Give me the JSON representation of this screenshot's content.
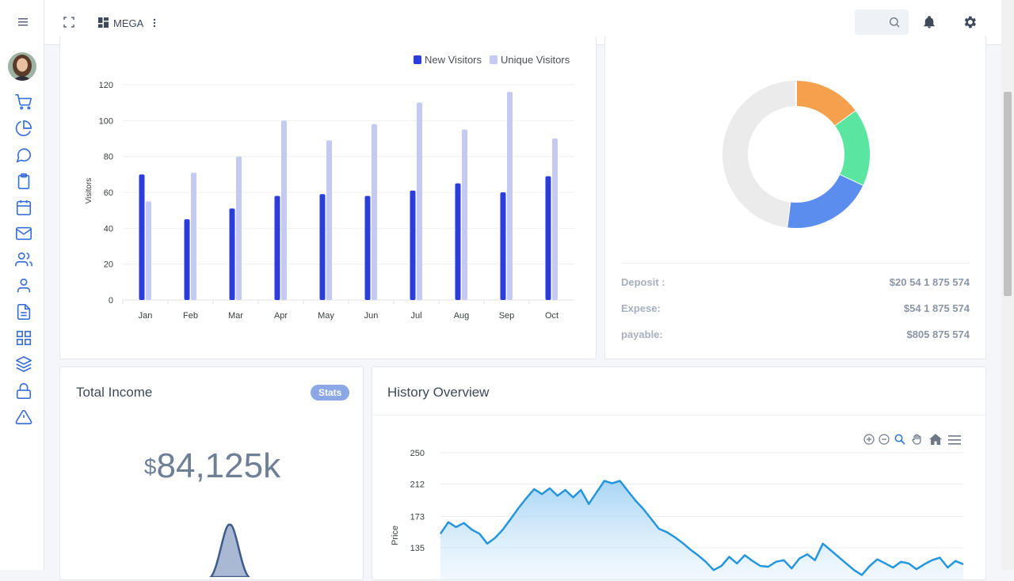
{
  "topbar": {
    "mega_label": "MEGA"
  },
  "visitors_chart": {
    "legend": [
      "New Visitors",
      "Unique Visitors"
    ],
    "colors": [
      "#2b3ed9",
      "#c4caf3"
    ]
  },
  "donut": {
    "segments": [
      {
        "color": "#f4a04d",
        "value": 15
      },
      {
        "color": "#5ae6a0",
        "value": 17
      },
      {
        "color": "#5b8def",
        "value": 20
      },
      {
        "color": "#ebebeb",
        "value": 48
      }
    ],
    "rows": [
      {
        "label": "Deposit :",
        "value": "$20 54 1 875 574"
      },
      {
        "label": "Expese:",
        "value": "$54 1 875 574"
      },
      {
        "label": "payable:",
        "value": "$805 875 574"
      }
    ]
  },
  "total_income": {
    "title": "Total Income",
    "badge": "Stats",
    "currency": "$",
    "amount": "84,125k"
  },
  "history": {
    "title": "History Overview",
    "y_axis_label": "Price",
    "y_ticks": [
      "250",
      "212",
      "173",
      "135"
    ]
  },
  "chart_data": [
    {
      "type": "bar",
      "categories": [
        "Jan",
        "Feb",
        "Mar",
        "Apr",
        "May",
        "Jun",
        "Jul",
        "Aug",
        "Sep",
        "Oct"
      ],
      "series": [
        {
          "name": "New Visitors",
          "values": [
            70,
            45,
            51,
            58,
            59,
            58,
            61,
            65,
            60,
            69
          ]
        },
        {
          "name": "Unique Visitors",
          "values": [
            55,
            71,
            80,
            100,
            89,
            98,
            110,
            95,
            116,
            90
          ]
        }
      ],
      "ylabel": "Visitors",
      "ylim": [
        0,
        120
      ],
      "y_ticks": [
        0,
        20,
        40,
        60,
        80,
        100,
        120
      ],
      "grid": true,
      "legend": "top-right"
    },
    {
      "type": "area",
      "ylabel": "Price",
      "ylim": [
        100,
        250
      ],
      "y_ticks": [
        135,
        173,
        212,
        250
      ],
      "values": [
        152,
        166,
        160,
        165,
        157,
        152,
        140,
        147,
        157,
        170,
        183,
        195,
        206,
        200,
        207,
        198,
        205,
        196,
        205,
        188,
        202,
        216,
        213,
        216,
        204,
        192,
        182,
        170,
        158,
        154,
        148,
        141,
        133,
        126,
        118,
        108,
        113,
        124,
        116,
        126,
        119,
        113,
        112,
        118,
        120,
        110,
        122,
        127,
        120,
        140,
        132,
        124,
        116,
        108,
        102,
        113,
        121,
        116,
        111,
        118,
        116,
        109,
        115,
        120,
        123,
        111,
        119,
        115
      ]
    }
  ]
}
